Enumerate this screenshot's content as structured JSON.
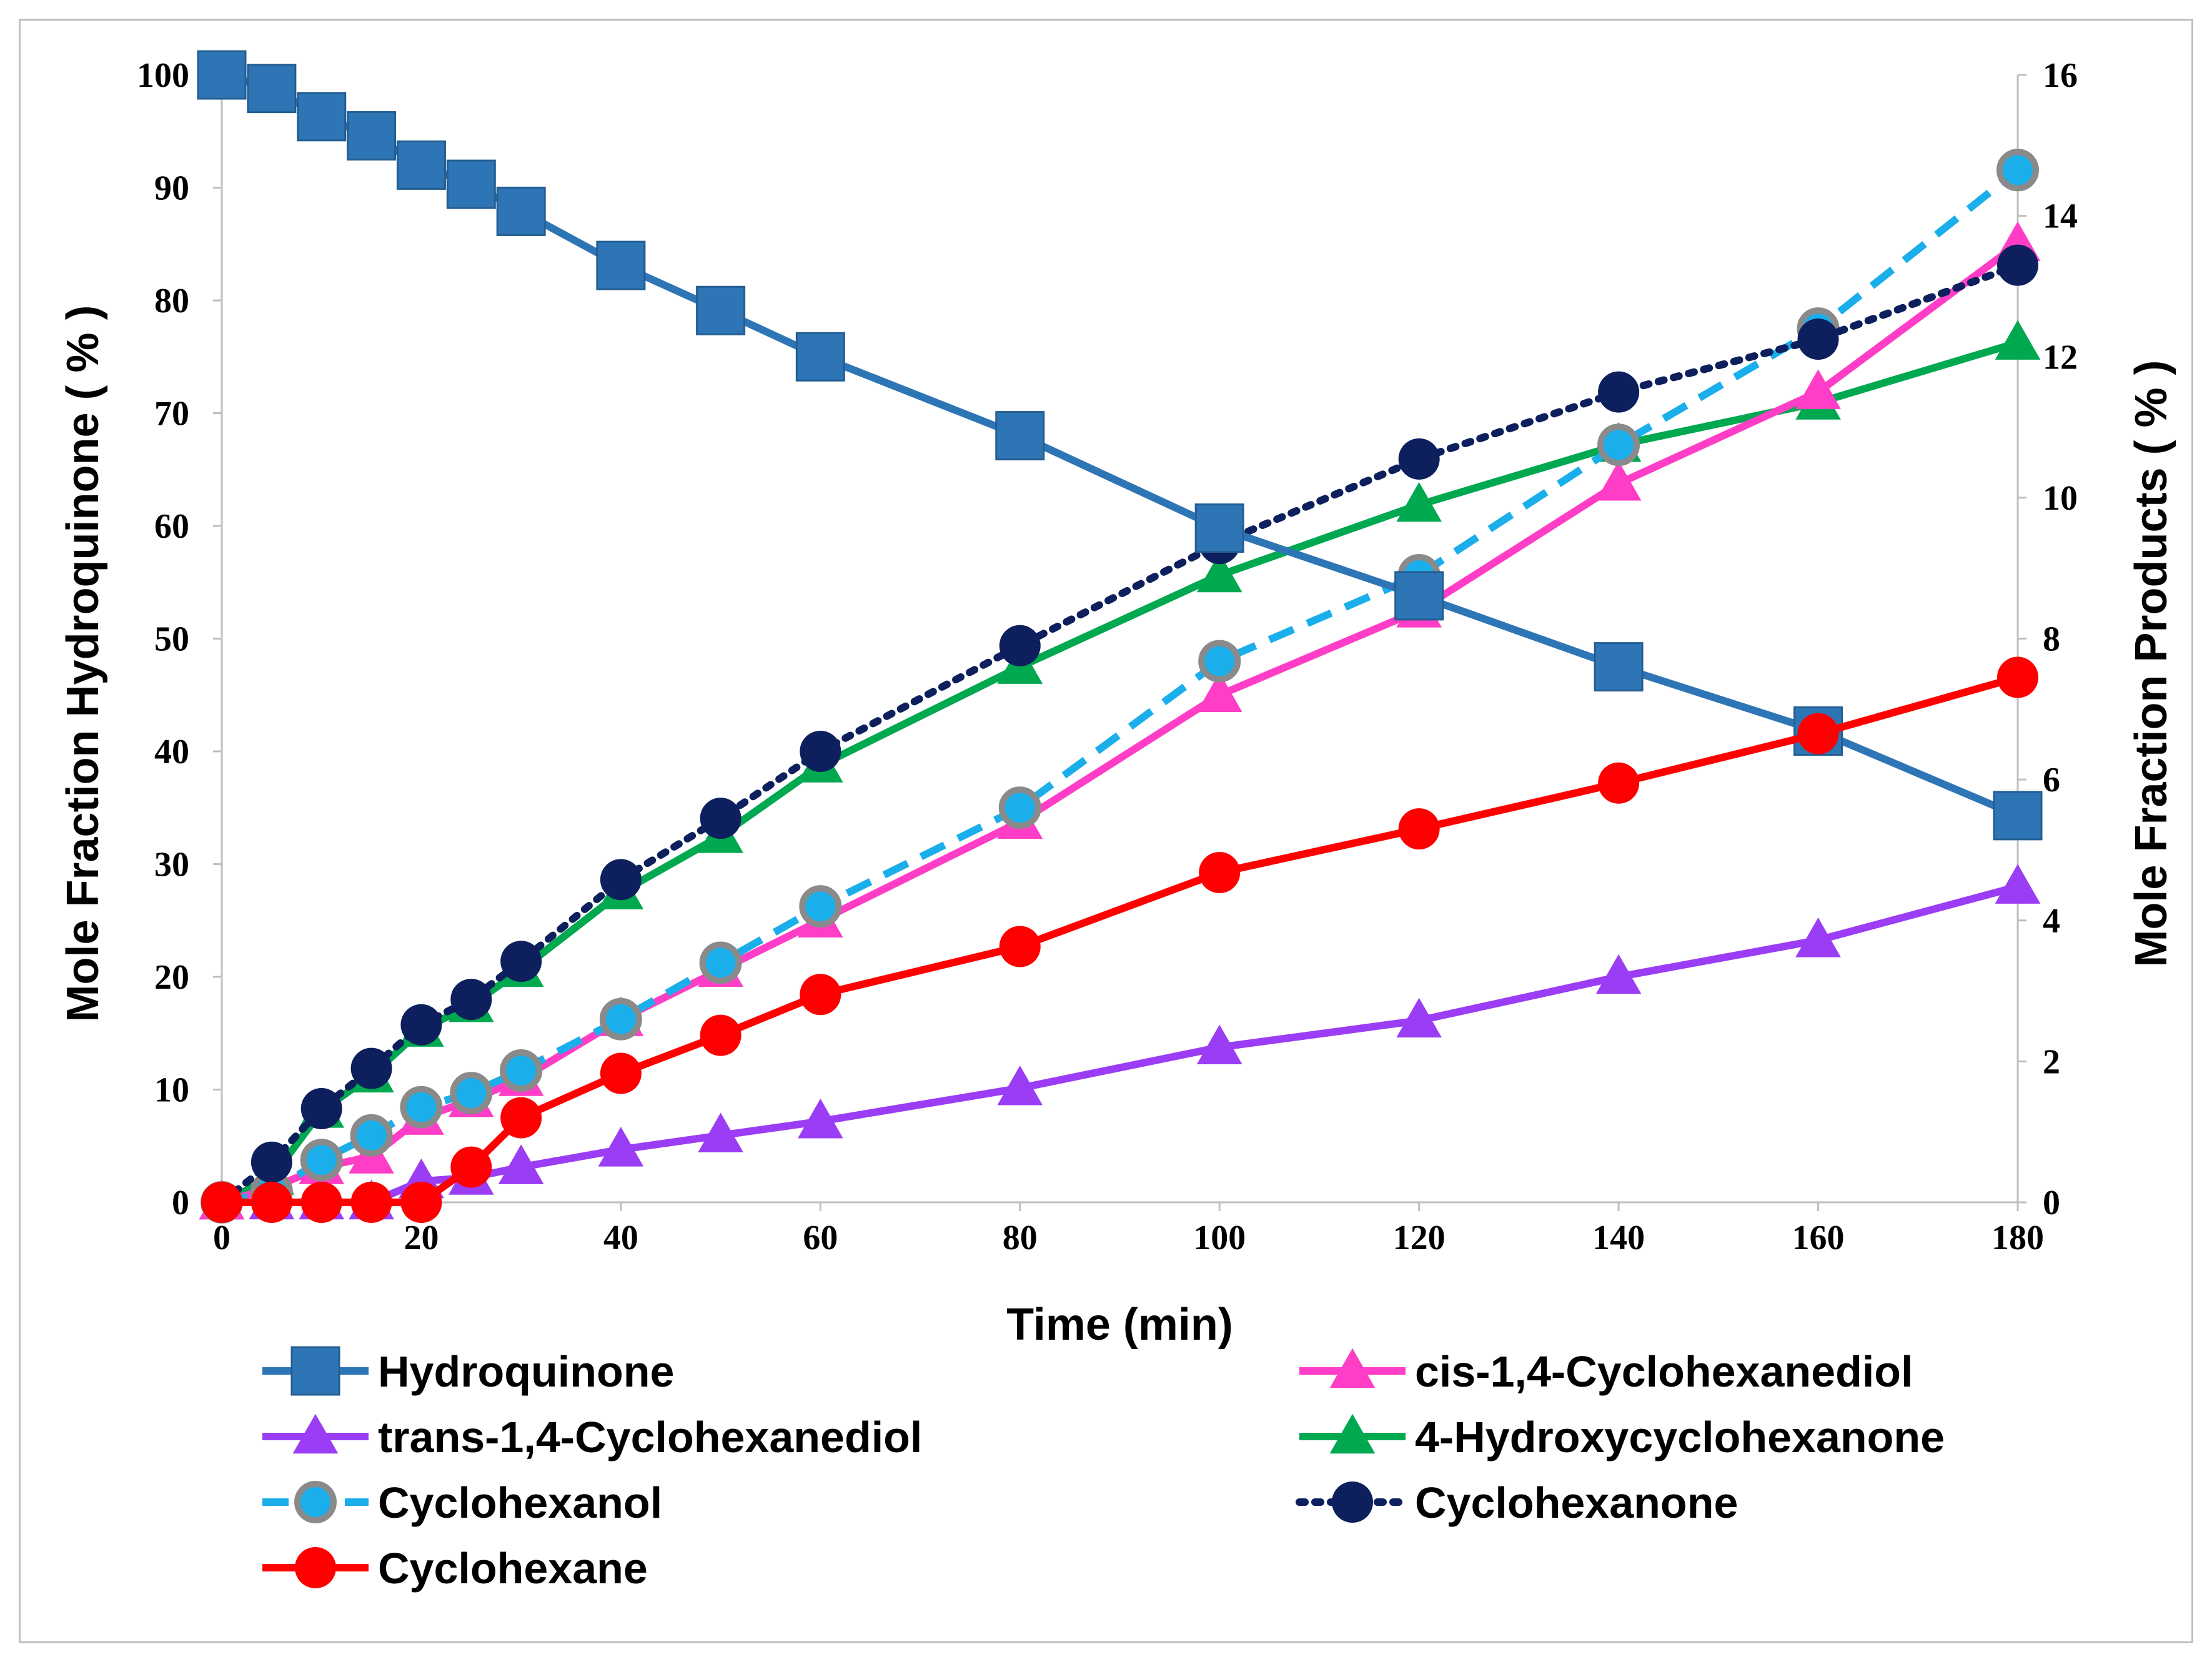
{
  "chart_data": {
    "type": "line",
    "xlabel": "Time (min)",
    "ylabel_left": "Mole Fraction  Hydroquinone ( % )",
    "ylabel_right": "Mole Fraction Products ( % )",
    "xlim": [
      0,
      180
    ],
    "ylim_left": [
      0,
      100
    ],
    "ylim_right": [
      0,
      16
    ],
    "x_ticks": [
      "0",
      "20",
      "40",
      "60",
      "80",
      "100",
      "120",
      "140",
      "160",
      "180"
    ],
    "y_left_ticks": [
      "0",
      "10",
      "20",
      "30",
      "40",
      "50",
      "60",
      "70",
      "80",
      "90",
      "100"
    ],
    "y_right_ticks": [
      "0",
      "2",
      "4",
      "6",
      "8",
      "10",
      "12",
      "14",
      "16"
    ],
    "legend_position": "bottom",
    "series": [
      {
        "name": "Hydroquinone",
        "axis": "left",
        "color": "#2e75b6",
        "marker": "square",
        "dash": "solid",
        "x": [
          0,
          5,
          10,
          15,
          20,
          25,
          30,
          40,
          50,
          60,
          80,
          100,
          120,
          140,
          160,
          180
        ],
        "values": [
          100,
          98.8,
          96.3,
          94.6,
          92,
          90.3,
          87.9,
          83.1,
          79.1,
          75,
          68,
          59.8,
          53.8,
          47.5,
          41.8,
          34.3
        ]
      },
      {
        "name": "cis-1,4-Cyclohexanediol",
        "axis": "right",
        "color": "#ff3dc6",
        "marker": "triangle",
        "dash": "solid",
        "x": [
          0,
          5,
          10,
          15,
          20,
          25,
          30,
          40,
          50,
          60,
          80,
          100,
          120,
          140,
          160,
          180
        ],
        "values": [
          0,
          0.2,
          0.5,
          0.65,
          1.2,
          1.45,
          1.75,
          2.6,
          3.3,
          4.0,
          5.4,
          7.2,
          8.4,
          10.2,
          11.5,
          13.6
        ]
      },
      {
        "name": "trans-1,4-Cyclohexanediol",
        "axis": "right",
        "color": "#9b3df5",
        "marker": "triangle",
        "dash": "solid",
        "x": [
          0,
          5,
          10,
          15,
          20,
          25,
          30,
          40,
          50,
          60,
          80,
          100,
          120,
          140,
          160,
          180
        ],
        "values": [
          0,
          0,
          0,
          0,
          0.3,
          0.35,
          0.5,
          0.75,
          0.95,
          1.15,
          1.62,
          2.2,
          2.58,
          3.2,
          3.72,
          4.48
        ]
      },
      {
        "name": "4-Hydroxycyclohexanone",
        "axis": "right",
        "color": "#00a850",
        "marker": "triangle",
        "dash": "solid",
        "x": [
          0,
          5,
          10,
          15,
          20,
          25,
          30,
          40,
          50,
          60,
          80,
          100,
          120,
          140,
          160,
          180
        ],
        "values": [
          0,
          0.35,
          1.3,
          1.8,
          2.45,
          2.8,
          3.3,
          4.4,
          5.2,
          6.2,
          7.6,
          8.9,
          9.9,
          10.75,
          11.35,
          12.2
        ]
      },
      {
        "name": "Cyclohexanol",
        "axis": "right",
        "color": "#1aaeea",
        "marker": "ringed-circle",
        "dash": "dashed",
        "x": [
          0,
          5,
          10,
          15,
          20,
          25,
          30,
          40,
          50,
          60,
          80,
          100,
          120,
          140,
          160,
          180
        ],
        "values": [
          0,
          0.15,
          0.6,
          0.95,
          1.35,
          1.55,
          1.87,
          2.6,
          3.4,
          4.2,
          5.6,
          7.68,
          8.9,
          10.75,
          12.4,
          14.65
        ]
      },
      {
        "name": "Cyclohexanone",
        "axis": "right",
        "color": "#0d1f5c",
        "marker": "circle",
        "dash": "dotted",
        "x": [
          0,
          5,
          10,
          15,
          20,
          25,
          30,
          40,
          50,
          60,
          80,
          100,
          120,
          140,
          160,
          180
        ],
        "values": [
          0,
          0.57,
          1.33,
          1.9,
          2.52,
          2.88,
          3.42,
          4.58,
          5.45,
          6.4,
          7.9,
          9.35,
          10.55,
          11.5,
          12.25,
          13.3
        ]
      },
      {
        "name": "Cyclohexane",
        "axis": "right",
        "color": "#ff0000",
        "marker": "circle",
        "dash": "solid",
        "x": [
          0,
          5,
          10,
          15,
          20,
          25,
          30,
          40,
          50,
          60,
          80,
          100,
          120,
          140,
          160,
          180
        ],
        "values": [
          0,
          0,
          0,
          0,
          0,
          0.5,
          1.2,
          1.83,
          2.37,
          2.95,
          3.63,
          4.68,
          5.3,
          5.95,
          6.65,
          7.45
        ]
      }
    ]
  }
}
